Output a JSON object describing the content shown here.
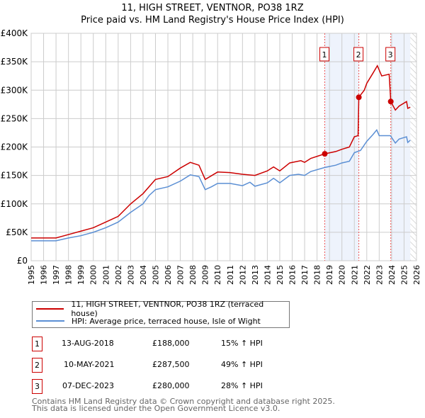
{
  "chart_data": {
    "type": "line",
    "title": "11, HIGH STREET, VENTNOR, PO38 1RZ",
    "subtitle": "Price paid vs. HM Land Registry's House Price Index (HPI)",
    "xlim": [
      1995,
      2026
    ],
    "ylim": [
      0,
      400000
    ],
    "x_ticks": [
      "1995",
      "1996",
      "1997",
      "1998",
      "1999",
      "2000",
      "2001",
      "2002",
      "2003",
      "2004",
      "2005",
      "2006",
      "2007",
      "2008",
      "2009",
      "2010",
      "2011",
      "2012",
      "2013",
      "2014",
      "2015",
      "2016",
      "2017",
      "2018",
      "2019",
      "2020",
      "2021",
      "2022",
      "2023",
      "2024",
      "2025",
      "2026"
    ],
    "y_ticks": [
      {
        "v": 0,
        "label": "£0"
      },
      {
        "v": 50000,
        "label": "£50K"
      },
      {
        "v": 100000,
        "label": "£100K"
      },
      {
        "v": 150000,
        "label": "£150K"
      },
      {
        "v": 200000,
        "label": "£200K"
      },
      {
        "v": 250000,
        "label": "£250K"
      },
      {
        "v": 300000,
        "label": "£300K"
      },
      {
        "v": 350000,
        "label": "£350K"
      },
      {
        "v": 400000,
        "label": "£400K"
      }
    ],
    "grid": true,
    "series": [
      {
        "name": "11, HIGH STREET, VENTNOR, PO38 1RZ (terraced house)",
        "color": "#cc0000",
        "points": [
          [
            1995,
            40000
          ],
          [
            1997,
            40000
          ],
          [
            1998,
            46000
          ],
          [
            1999,
            52000
          ],
          [
            2000,
            58000
          ],
          [
            2001,
            68000
          ],
          [
            2002,
            78000
          ],
          [
            2003,
            100000
          ],
          [
            2004,
            118000
          ],
          [
            2005,
            143000
          ],
          [
            2006,
            148000
          ],
          [
            2007,
            163000
          ],
          [
            2007.8,
            173000
          ],
          [
            2008.5,
            168000
          ],
          [
            2009,
            143000
          ],
          [
            2010,
            156000
          ],
          [
            2011,
            155000
          ],
          [
            2012,
            152000
          ],
          [
            2013,
            150000
          ],
          [
            2014,
            158000
          ],
          [
            2014.5,
            165000
          ],
          [
            2015,
            158000
          ],
          [
            2015.8,
            172000
          ],
          [
            2016.7,
            176000
          ],
          [
            2017,
            173000
          ],
          [
            2017.5,
            180000
          ],
          [
            2018.62,
            188000
          ],
          [
            2019.5,
            192000
          ],
          [
            2020,
            196000
          ],
          [
            2020.6,
            200000
          ],
          [
            2021,
            218000
          ],
          [
            2021.3,
            220000
          ],
          [
            2021.36,
            287500
          ],
          [
            2021.8,
            300000
          ],
          [
            2022,
            312000
          ],
          [
            2022.5,
            330000
          ],
          [
            2022.85,
            343000
          ],
          [
            2023.2,
            325000
          ],
          [
            2023.8,
            328000
          ],
          [
            2023.93,
            280000
          ],
          [
            2024.3,
            265000
          ],
          [
            2024.6,
            272000
          ],
          [
            2025.2,
            280000
          ],
          [
            2025.3,
            268000
          ],
          [
            2025.5,
            270000
          ]
        ]
      },
      {
        "name": "HPI: Average price, terraced house, Isle of Wight",
        "color": "#5b8fd4",
        "points": [
          [
            1995,
            35000
          ],
          [
            1997,
            35000
          ],
          [
            1998,
            40000
          ],
          [
            1999,
            44000
          ],
          [
            2000,
            50000
          ],
          [
            2001,
            58000
          ],
          [
            2002,
            68000
          ],
          [
            2003,
            85000
          ],
          [
            2004,
            100000
          ],
          [
            2004.5,
            115000
          ],
          [
            2005,
            125000
          ],
          [
            2006,
            130000
          ],
          [
            2007,
            140000
          ],
          [
            2007.8,
            151000
          ],
          [
            2008.5,
            148000
          ],
          [
            2009,
            125000
          ],
          [
            2009.5,
            130000
          ],
          [
            2010,
            136000
          ],
          [
            2011,
            136000
          ],
          [
            2012,
            132000
          ],
          [
            2012.6,
            138000
          ],
          [
            2013,
            131000
          ],
          [
            2014,
            137000
          ],
          [
            2014.5,
            145000
          ],
          [
            2015,
            137000
          ],
          [
            2015.8,
            150000
          ],
          [
            2016.5,
            152000
          ],
          [
            2017,
            150000
          ],
          [
            2017.5,
            157000
          ],
          [
            2018.62,
            164000
          ],
          [
            2019.5,
            168000
          ],
          [
            2020,
            172000
          ],
          [
            2020.6,
            175000
          ],
          [
            2021,
            190000
          ],
          [
            2021.5,
            194000
          ],
          [
            2022,
            210000
          ],
          [
            2022.5,
            222000
          ],
          [
            2022.8,
            230000
          ],
          [
            2023,
            220000
          ],
          [
            2023.9,
            220000
          ],
          [
            2024.3,
            207000
          ],
          [
            2024.6,
            214000
          ],
          [
            2025.2,
            218000
          ],
          [
            2025.3,
            208000
          ],
          [
            2025.5,
            212000
          ]
        ]
      }
    ],
    "sales": [
      {
        "id": "1",
        "x": 2018.62,
        "price": 188000,
        "date": "13-AUG-2018",
        "price_label": "£188,000",
        "hpi": "15% ↑ HPI"
      },
      {
        "id": "2",
        "x": 2021.36,
        "price": 287500,
        "date": "10-MAY-2021",
        "price_label": "£287,500",
        "hpi": "49% ↑ HPI"
      },
      {
        "id": "3",
        "x": 2023.93,
        "price": 280000,
        "date": "07-DEC-2023",
        "price_label": "£280,000",
        "hpi": "28% ↑ HPI"
      }
    ],
    "shaded": [
      [
        2018.62,
        2021.36
      ],
      [
        2023.93,
        2025.5
      ]
    ],
    "hatched_from": 2025.5
  },
  "footer": {
    "line1": "Contains HM Land Registry data © Crown copyright and database right 2025.",
    "line2": "This data is licensed under the Open Government Licence v3.0."
  }
}
